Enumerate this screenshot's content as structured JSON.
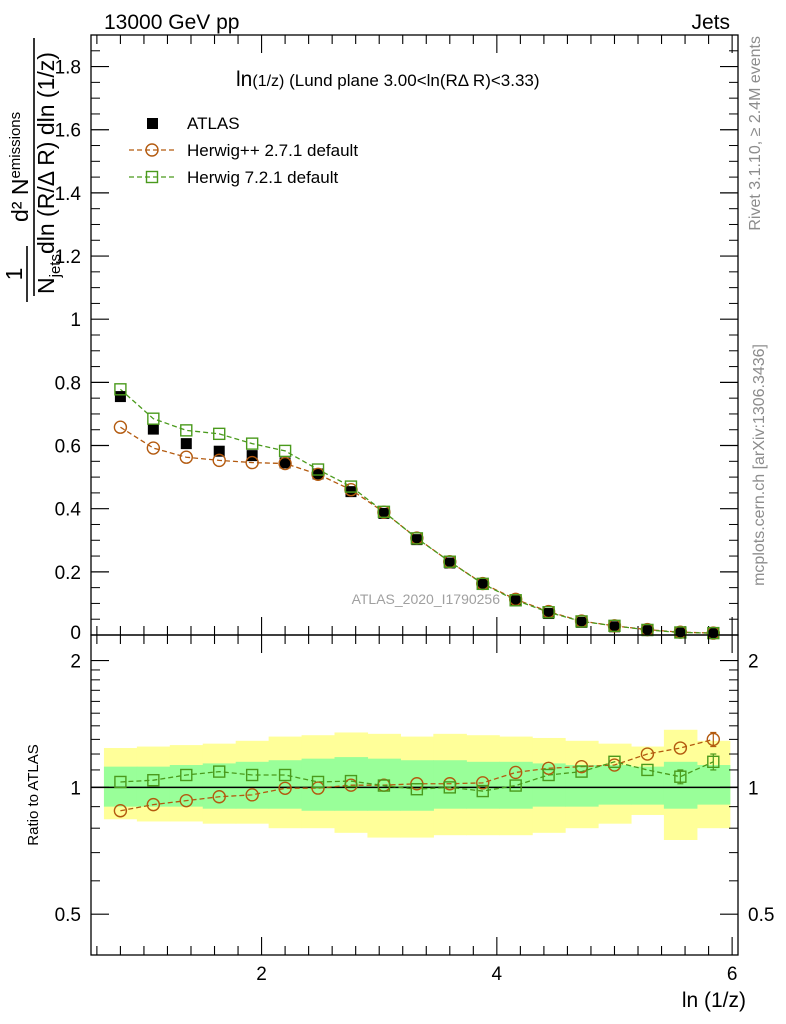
{
  "header": {
    "energy_label": "13000 GeV pp",
    "category_label": "Jets"
  },
  "side_labels": {
    "rivet": "Rivet 3.1.10, ≥ 2.4M events",
    "mcplots": "mcplots.cern.ch [arXiv:1306.3436]"
  },
  "chart_data": [
    {
      "type": "scatter",
      "panel": "main",
      "title": "ln(1/z) (Lund plane 3.00<ln(RΔ R)<3.33)",
      "title_main": "ln",
      "title_small": "(1/z)",
      "title_rest": " (Lund plane 3.00<ln(RΔ R)<3.33)",
      "ylabel": {
        "numerator": "d² N",
        "numerator_sub": "emissions",
        "denominator_a": "N",
        "denominator_sub": "jets",
        "denominator_b": "dln (R/Δ R) dln (1/z)",
        "prefactor": "1"
      },
      "xlim": [
        0.55,
        6.05
      ],
      "ylim": [
        0,
        1.9
      ],
      "yticks": [
        0.2,
        0.4,
        0.6,
        0.8,
        1,
        1.2,
        1.4,
        1.6,
        1.8
      ],
      "ytick_labels": [
        "0.2",
        "0.4",
        "0.6",
        "0.8",
        "1",
        "1.2",
        "1.4",
        "1.6",
        "1.8"
      ],
      "zero_label": "0",
      "analysis_label": "ATLAS_2020_I1790256",
      "legend_position": "top-left",
      "x": [
        0.8,
        1.08,
        1.36,
        1.64,
        1.92,
        2.2,
        2.48,
        2.76,
        3.04,
        3.32,
        3.6,
        3.88,
        4.16,
        4.44,
        4.72,
        5.0,
        5.28,
        5.56,
        5.84
      ],
      "series": [
        {
          "name": "ATLAS",
          "marker": "filled-square",
          "color": "#000000",
          "values": [
            0.755,
            0.652,
            0.606,
            0.582,
            0.568,
            0.545,
            0.51,
            0.454,
            0.385,
            0.302,
            0.228,
            0.16,
            0.108,
            0.068,
            0.04,
            0.026,
            0.014,
            0.008,
            0.005
          ]
        },
        {
          "name": "Herwig++ 2.7.1 default",
          "marker": "open-circle",
          "color": "#b35a0f",
          "values": [
            0.658,
            0.592,
            0.563,
            0.553,
            0.546,
            0.543,
            0.509,
            0.46,
            0.389,
            0.307,
            0.232,
            0.163,
            0.113,
            0.074,
            0.044,
            0.029,
            0.017,
            0.009,
            0.006
          ]
        },
        {
          "name": "Herwig 7.2.1 default",
          "marker": "open-square",
          "color": "#4a9a1c",
          "values": [
            0.778,
            0.685,
            0.648,
            0.637,
            0.606,
            0.583,
            0.524,
            0.47,
            0.39,
            0.306,
            0.232,
            0.162,
            0.11,
            0.072,
            0.043,
            0.029,
            0.016,
            0.008,
            0.006
          ]
        }
      ]
    },
    {
      "type": "scatter",
      "panel": "ratio",
      "ylabel": "Ratio to ATLAS",
      "xlabel": "ln (1/z)",
      "xlim": [
        0.55,
        6.05
      ],
      "ylim": [
        0.4,
        2.3
      ],
      "ylog": true,
      "xticks": [
        2,
        4,
        6
      ],
      "xtick_labels": [
        "2",
        "4",
        "6"
      ],
      "yticks": [
        0.5,
        1,
        2
      ],
      "ytick_labels": [
        "0.5",
        "1",
        "2"
      ],
      "x": [
        0.8,
        1.08,
        1.36,
        1.64,
        1.92,
        2.2,
        2.48,
        2.76,
        3.04,
        3.32,
        3.6,
        3.88,
        4.16,
        4.44,
        4.72,
        5.0,
        5.28,
        5.56,
        5.84
      ],
      "bin_edges": [
        0.66,
        0.94,
        1.22,
        1.5,
        1.78,
        2.06,
        2.34,
        2.62,
        2.9,
        3.18,
        3.46,
        3.74,
        4.02,
        4.3,
        4.58,
        4.86,
        5.14,
        5.42,
        5.7,
        5.98
      ],
      "band_outer": {
        "color": "#ffff99",
        "lo": [
          0.84,
          0.83,
          0.83,
          0.82,
          0.82,
          0.8,
          0.8,
          0.78,
          0.76,
          0.76,
          0.77,
          0.77,
          0.77,
          0.78,
          0.8,
          0.82,
          0.86,
          0.75,
          0.8
        ],
        "hi": [
          1.24,
          1.25,
          1.26,
          1.27,
          1.29,
          1.32,
          1.33,
          1.35,
          1.34,
          1.32,
          1.34,
          1.33,
          1.32,
          1.31,
          1.29,
          1.27,
          1.25,
          1.37,
          1.29
        ]
      },
      "band_inner": {
        "color": "#99ff99",
        "lo": [
          0.9,
          0.9,
          0.9,
          0.89,
          0.89,
          0.89,
          0.88,
          0.88,
          0.88,
          0.88,
          0.89,
          0.89,
          0.89,
          0.9,
          0.9,
          0.91,
          0.91,
          0.89,
          0.91
        ],
        "hi": [
          1.12,
          1.12,
          1.13,
          1.14,
          1.15,
          1.16,
          1.17,
          1.18,
          1.17,
          1.16,
          1.16,
          1.15,
          1.15,
          1.14,
          1.13,
          1.13,
          1.12,
          1.15,
          1.13
        ]
      },
      "series": [
        {
          "name": "Herwig++ 2.7.1 default",
          "marker": "open-circle",
          "color": "#b35a0f",
          "values": [
            0.88,
            0.91,
            0.93,
            0.95,
            0.96,
            0.995,
            0.996,
            1.012,
            1.012,
            1.02,
            1.02,
            1.025,
            1.085,
            1.11,
            1.12,
            1.13,
            1.2,
            1.24,
            1.3
          ],
          "errors": [
            0.005,
            0.005,
            0.005,
            0.005,
            0.005,
            0.005,
            0.005,
            0.005,
            0.005,
            0.005,
            0.005,
            0.006,
            0.008,
            0.01,
            0.012,
            0.015,
            0.025,
            0.04,
            0.05
          ]
        },
        {
          "name": "Herwig 7.2.1 default",
          "marker": "open-square",
          "color": "#4a9a1c",
          "values": [
            1.03,
            1.04,
            1.07,
            1.09,
            1.07,
            1.07,
            1.03,
            1.035,
            1.01,
            0.99,
            1.0,
            0.98,
            1.01,
            1.07,
            1.09,
            1.15,
            1.1,
            1.06,
            1.15
          ],
          "errors": [
            0.005,
            0.005,
            0.005,
            0.005,
            0.005,
            0.005,
            0.005,
            0.005,
            0.005,
            0.005,
            0.005,
            0.006,
            0.008,
            0.01,
            0.012,
            0.015,
            0.025,
            0.04,
            0.05
          ]
        }
      ]
    }
  ]
}
